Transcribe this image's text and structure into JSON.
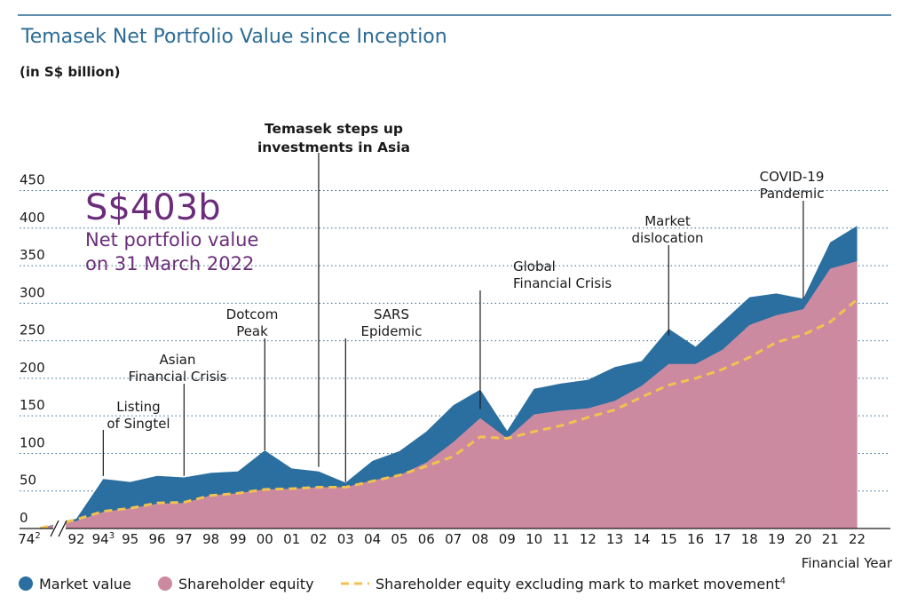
{
  "chart_data": {
    "type": "area",
    "title": "Temasek Net Portfolio Value since Inception",
    "ylabel": "(in S$ billion)",
    "xlabel": "Financial Year",
    "ylim": [
      0,
      450
    ],
    "yticks": [
      "0",
      "50",
      "100",
      "150",
      "200",
      "250",
      "300",
      "350",
      "400",
      "450"
    ],
    "categories": [
      "74",
      "92",
      "94",
      "95",
      "96",
      "97",
      "98",
      "99",
      "00",
      "01",
      "02",
      "03",
      "04",
      "05",
      "06",
      "07",
      "08",
      "09",
      "10",
      "11",
      "12",
      "13",
      "14",
      "15",
      "16",
      "17",
      "18",
      "19",
      "20",
      "21",
      "22"
    ],
    "category_footnotes": {
      "0": "2",
      "2": "3"
    },
    "series": [
      {
        "name": "Market value",
        "color": "#2a6fa0",
        "values": [
          0.4,
          13,
          66,
          62,
          70,
          68,
          74,
          76,
          104,
          80,
          76,
          61,
          90,
          103,
          129,
          164,
          185,
          130,
          186,
          193,
          198,
          215,
          223,
          266,
          242,
          275,
          308,
          313,
          306,
          381,
          403
        ]
      },
      {
        "name": "Shareholder equity",
        "color": "#cc8aa0",
        "values": [
          0.35,
          10,
          22,
          27,
          33,
          34,
          44,
          47,
          52,
          53,
          55,
          55,
          64,
          71,
          88,
          115,
          147,
          120,
          152,
          157,
          160,
          170,
          190,
          219,
          219,
          238,
          271,
          284,
          292,
          346,
          356
        ]
      },
      {
        "name": "Shareholder equity excluding mark to market movement",
        "color": "#f2c24f",
        "style": "dashed",
        "values": [
          0.35,
          12,
          23,
          27,
          34,
          35,
          44,
          47,
          52,
          53,
          55,
          55,
          63,
          71,
          83,
          96,
          122,
          120,
          129,
          137,
          148,
          158,
          175,
          191,
          200,
          212,
          228,
          248,
          258,
          275,
          305
        ]
      }
    ],
    "legend_footnote": "4",
    "legend_position": "bottom",
    "grid": "horizontal dotted",
    "axis_break": "between 74 and 92",
    "callout": {
      "value": "S$403b",
      "line1": "Net portfolio value",
      "line2": "on 31 March 2022"
    },
    "annotations": [
      {
        "lines": [
          "Listing",
          "of Singtel"
        ],
        "x": "94"
      },
      {
        "lines": [
          "Asian",
          "Financial Crisis"
        ],
        "x": "97"
      },
      {
        "lines": [
          "Dotcom",
          "Peak"
        ],
        "x": "00"
      },
      {
        "lines": [
          "Temasek steps up",
          "investments in Asia"
        ],
        "x": "02",
        "bold": true
      },
      {
        "lines": [
          "SARS",
          "Epidemic"
        ],
        "x": "03"
      },
      {
        "lines": [
          "Global",
          "Financial Crisis"
        ],
        "x": "08"
      },
      {
        "lines": [
          "Market",
          "dislocation"
        ],
        "x": "15"
      },
      {
        "lines": [
          "COVID-19",
          "Pandemic"
        ],
        "x": "20"
      }
    ]
  }
}
